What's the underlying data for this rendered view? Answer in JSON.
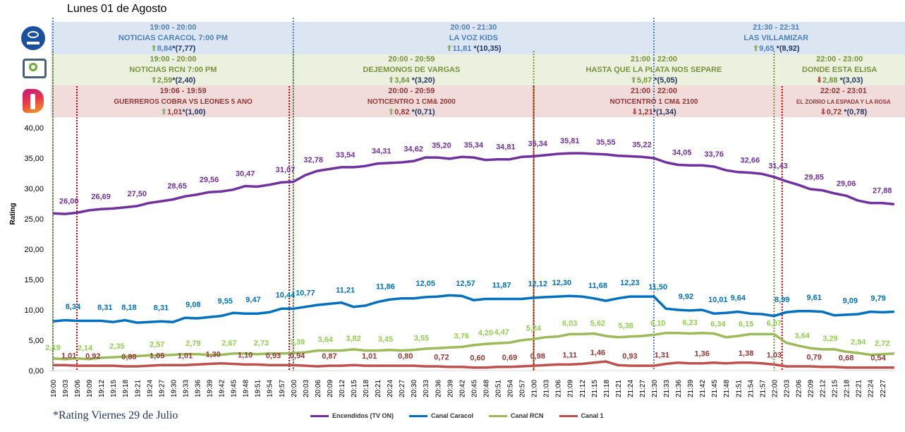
{
  "title": "Lunes 01 de Agosto",
  "footnote": "*Rating Viernes 29 de Julio",
  "channels": {
    "caracol": {
      "logo": "CARACOL",
      "programs": [
        {
          "time": "19:00 - 20:00",
          "title": "NOTICIAS CARACOL 7:00 PM",
          "arrow": "up",
          "rating": "8,84",
          "prev": "*(7,77)"
        },
        {
          "time": "20:00 - 21:30",
          "title": "LA VOZ KIDS",
          "arrow": "up",
          "rating": "11,81",
          "prev": " *(10,35)"
        },
        {
          "time": "21:30 - 22:31",
          "title": "LAS VILLAMIZAR",
          "arrow": "up",
          "rating": "9,65",
          "prev": " *(8,92)"
        }
      ]
    },
    "rcn": {
      "programs": [
        {
          "time": "19:00 - 20:00",
          "title": "NOTICIAS RCN 7:00 PM",
          "arrow": "up",
          "rating": "2,59",
          "prev": "*(2,40)"
        },
        {
          "time": "20:00 - 20:59",
          "title": "DEJEMONOS DE VARGAS",
          "arrow": "up",
          "rating": "3,84",
          "prev": " *(3,20)"
        },
        {
          "time": "21:00 - 22:00",
          "title": "HASTA QUE LA PLATA NOS SEPARE",
          "arrow": "up",
          "rating": "5,87",
          "prev": " *(5,05)"
        },
        {
          "time": "22:00 - 23:00",
          "title": "DONDE ESTA ELISA",
          "arrow": "down",
          "rating": "2,88",
          "prev": " *(3,03)"
        }
      ]
    },
    "canal1": {
      "programs": [
        {
          "time": "19:06 - 19:59",
          "title": "GUERREROS COBRA VS LEONES 5 ANO",
          "arrow": "up",
          "rating": "1,01",
          "prev": "*(1,00)"
        },
        {
          "time": "20:00 - 20:59",
          "title": "NOTICENTRO 1 CM& 2000",
          "arrow": "up",
          "rating": "0,82",
          "prev": " *(0,71)"
        },
        {
          "time": "21:00 - 22:00",
          "title": "NOTICENTRO 1 CM& 2100",
          "arrow": "down",
          "rating": "1,21",
          "prev": "*(1,34)"
        },
        {
          "time": "22:02 - 23:01",
          "title": "EL ZORRO LA ESPADA Y LA ROSA",
          "arrow": "down",
          "rating": "0,72",
          "prev": " *(0,78)"
        }
      ]
    }
  },
  "icons": {
    "up": "arrow-up",
    "down": "arrow-down"
  },
  "chart_data": {
    "type": "line",
    "title": "",
    "xlabel": "",
    "ylabel": "Rating",
    "ylim": [
      0,
      40
    ],
    "yticks": [
      "0,00",
      "5,00",
      "10,00",
      "15,00",
      "20,00",
      "25,00",
      "30,00",
      "35,00",
      "40,00"
    ],
    "x_start": "19:00",
    "x_step_minutes": 3,
    "xticks": [
      "19:00",
      "19:03",
      "19:06",
      "19:09",
      "19:12",
      "19:15",
      "19:18",
      "19:21",
      "19:24",
      "19:27",
      "19:30",
      "19:33",
      "19:36",
      "19:39",
      "19:42",
      "19:45",
      "19:48",
      "19:51",
      "19:54",
      "19:57",
      "20:00",
      "20:03",
      "20:06",
      "20:09",
      "20:12",
      "20:15",
      "20:18",
      "20:21",
      "20:24",
      "20:27",
      "20:30",
      "20:33",
      "20:36",
      "20:39",
      "20:42",
      "20:45",
      "20:48",
      "20:51",
      "20:54",
      "20:57",
      "21:00",
      "21:03",
      "21:06",
      "21:09",
      "21:12",
      "21:15",
      "21:18",
      "21:21",
      "21:24",
      "21:27",
      "21:30",
      "21:33",
      "21:36",
      "21:39",
      "21:42",
      "21:45",
      "21:48",
      "21:51",
      "21:54",
      "21:57",
      "22:00",
      "22:03",
      "22:06",
      "22:09",
      "22:12",
      "22:15",
      "22:18",
      "22:21",
      "22:24",
      "22:27"
    ],
    "grid": false,
    "legend": "bottom",
    "program_boundaries": {
      "caracol": [
        "19:00",
        "20:00",
        "21:30"
      ],
      "rcn": [
        "19:00",
        "20:00",
        "21:00",
        "22:00"
      ],
      "canal1": [
        "19:06",
        "19:59",
        "21:00",
        "22:02"
      ]
    },
    "series": [
      {
        "name": "Encendidos (TV ON)",
        "color": "#7030a0",
        "label_color": "#7030a0",
        "values": [
          25.9,
          25.8,
          26.0,
          26.4,
          26.6,
          26.7,
          26.9,
          27.1,
          27.6,
          27.9,
          28.2,
          28.7,
          29.0,
          29.4,
          29.5,
          29.8,
          30.4,
          30.3,
          30.6,
          31.0,
          31.1,
          32.2,
          32.9,
          33.2,
          33.5,
          33.5,
          33.7,
          34.1,
          34.2,
          34.3,
          34.5,
          35.1,
          35.1,
          34.9,
          35.2,
          35.1,
          34.7,
          34.8,
          34.8,
          35.2,
          35.3,
          35.5,
          35.7,
          35.8,
          35.8,
          35.7,
          35.6,
          35.4,
          35.3,
          35.2,
          35.0,
          34.3,
          33.9,
          33.8,
          33.8,
          33.6,
          33.0,
          32.7,
          32.6,
          32.4,
          31.9,
          31.2,
          30.6,
          29.9,
          29.7,
          29.2,
          28.8,
          28.0,
          27.6,
          27.6,
          27.4
        ],
        "labels": [
          [
            "19:04",
            "26,00"
          ],
          [
            "19:12",
            "26,69"
          ],
          [
            "19:21",
            "27,50"
          ],
          [
            "19:31",
            "28,65"
          ],
          [
            "19:39",
            "29,56"
          ],
          [
            "19:48",
            "30,47"
          ],
          [
            "19:58",
            "31,07"
          ],
          [
            "20:05",
            "32,78"
          ],
          [
            "20:13",
            "33,54"
          ],
          [
            "20:22",
            "34,31"
          ],
          [
            "20:30",
            "34,62"
          ],
          [
            "20:37",
            "35,20"
          ],
          [
            "20:45",
            "35,34"
          ],
          [
            "20:53",
            "34,81"
          ],
          [
            "21:01",
            "35,34"
          ],
          [
            "21:09",
            "35,81"
          ],
          [
            "21:18",
            "35,55"
          ],
          [
            "21:27",
            "35,22"
          ],
          [
            "21:37",
            "34,05"
          ],
          [
            "21:45",
            "33,76"
          ],
          [
            "21:54",
            "32,66"
          ],
          [
            "22:01",
            "31,43"
          ],
          [
            "22:10",
            "29,85"
          ],
          [
            "22:18",
            "29,06"
          ],
          [
            "22:27",
            "27,88"
          ]
        ]
      },
      {
        "name": "Canal Caracol",
        "color": "#0070c0",
        "label_color": "#0070c0",
        "values": [
          8.1,
          8.3,
          8.2,
          8.2,
          8.2,
          8.0,
          8.3,
          7.9,
          8.0,
          8.1,
          8.0,
          8.7,
          8.6,
          8.8,
          9.0,
          9.5,
          9.4,
          9.4,
          9.6,
          10.2,
          10.2,
          10.5,
          10.8,
          11.0,
          11.2,
          10.5,
          10.7,
          11.3,
          11.7,
          11.9,
          11.9,
          12.1,
          12.2,
          12.4,
          12.3,
          11.6,
          11.8,
          11.8,
          11.8,
          11.8,
          12.0,
          12.1,
          12.2,
          12.3,
          12.2,
          11.9,
          11.5,
          11.9,
          12.2,
          12.2,
          12.2,
          10.2,
          10.0,
          9.9,
          10.0,
          9.4,
          9.5,
          9.7,
          9.4,
          9.3,
          9.0,
          9.6,
          9.8,
          9.8,
          9.7,
          9.1,
          9.2,
          9.3,
          9.7,
          9.6,
          9.7
        ],
        "labels": [
          [
            "19:05",
            "8,34"
          ],
          [
            "19:13",
            "8,31"
          ],
          [
            "19:19",
            "8,18"
          ],
          [
            "19:27",
            "8,31"
          ],
          [
            "19:35",
            "9,08"
          ],
          [
            "19:43",
            "9,55"
          ],
          [
            "19:50",
            "9,47"
          ],
          [
            "19:58",
            "10,44"
          ],
          [
            "20:03",
            "10,77"
          ],
          [
            "20:13",
            "11,21"
          ],
          [
            "20:23",
            "11,86"
          ],
          [
            "20:33",
            "12,05"
          ],
          [
            "20:43",
            "12,57"
          ],
          [
            "20:52",
            "11,87"
          ],
          [
            "21:01",
            "12,12"
          ],
          [
            "21:07",
            "12,30"
          ],
          [
            "21:16",
            "11,68"
          ],
          [
            "21:24",
            "12,23"
          ],
          [
            "21:31",
            "11,50"
          ],
          [
            "21:38",
            "9,92"
          ],
          [
            "21:46",
            "10,01"
          ],
          [
            "21:51",
            "9,64"
          ],
          [
            "22:02",
            "8,99"
          ],
          [
            "22:10",
            "9,61"
          ],
          [
            "22:19",
            "9,09"
          ],
          [
            "22:26",
            "9,79"
          ]
        ]
      },
      {
        "name": "Canal RCN",
        "color": "#9bbb59",
        "label_color": "#92d050",
        "values": [
          2.0,
          1.9,
          2.0,
          1.9,
          2.1,
          2.2,
          2.3,
          2.4,
          2.5,
          2.5,
          2.6,
          2.7,
          2.7,
          2.6,
          2.6,
          2.8,
          2.8,
          2.7,
          2.8,
          2.8,
          2.9,
          3.0,
          3.3,
          3.3,
          3.3,
          3.5,
          3.3,
          3.3,
          3.4,
          3.3,
          3.4,
          3.6,
          3.7,
          3.8,
          3.9,
          4.2,
          4.4,
          4.5,
          4.6,
          5.0,
          5.2,
          5.5,
          5.6,
          6.0,
          6.0,
          6.1,
          5.7,
          5.5,
          5.6,
          5.7,
          5.9,
          6.2,
          6.2,
          6.1,
          6.2,
          6.1,
          5.5,
          5.7,
          6.0,
          6.0,
          6.0,
          4.6,
          4.1,
          3.7,
          3.5,
          3.5,
          3.1,
          2.9,
          2.6,
          2.7,
          2.8
        ],
        "labels": [
          [
            "19:00",
            "2,19"
          ],
          [
            "19:08",
            "2,14"
          ],
          [
            "19:16",
            "2,35"
          ],
          [
            "19:26",
            "2,57"
          ],
          [
            "19:35",
            "2,79"
          ],
          [
            "19:44",
            "2,67"
          ],
          [
            "19:52",
            "2,73"
          ],
          [
            "20:01",
            "3,39"
          ],
          [
            "20:08",
            "3,64"
          ],
          [
            "20:15",
            "3,82"
          ],
          [
            "20:23",
            "3,45"
          ],
          [
            "20:32",
            "3,55"
          ],
          [
            "20:42",
            "3,76"
          ],
          [
            "20:48",
            "4,20"
          ],
          [
            "20:52",
            "4,47"
          ],
          [
            "21:00",
            "5,24"
          ],
          [
            "21:09",
            "6,03"
          ],
          [
            "21:16",
            "5,62"
          ],
          [
            "21:23",
            "5,38"
          ],
          [
            "21:31",
            "6,10"
          ],
          [
            "21:39",
            "6,23"
          ],
          [
            "21:46",
            "6,34"
          ],
          [
            "21:53",
            "6,15"
          ],
          [
            "22:00",
            "6,07"
          ],
          [
            "22:07",
            "3,64"
          ],
          [
            "22:14",
            "3,29"
          ],
          [
            "22:21",
            "2,94"
          ],
          [
            "22:27",
            "2,72"
          ]
        ]
      },
      {
        "name": "Canal 1",
        "color": "#c0504d",
        "label_color": "#953735",
        "values": [
          0.9,
          0.9,
          0.8,
          0.8,
          0.8,
          0.8,
          0.7,
          0.7,
          0.8,
          0.9,
          0.9,
          0.9,
          1.0,
          1.1,
          1.2,
          1.1,
          1.0,
          1.0,
          0.9,
          0.9,
          0.9,
          0.8,
          0.7,
          0.8,
          0.8,
          0.9,
          0.8,
          0.8,
          0.8,
          0.8,
          0.8,
          0.7,
          0.7,
          0.6,
          0.6,
          0.5,
          0.5,
          0.6,
          0.6,
          0.7,
          0.8,
          0.9,
          1.0,
          1.0,
          1.1,
          1.3,
          1.5,
          0.9,
          0.8,
          0.8,
          0.8,
          1.1,
          1.3,
          1.2,
          1.2,
          1.3,
          1.2,
          1.3,
          1.3,
          1.2,
          1.0,
          0.7,
          0.7,
          0.7,
          0.6,
          0.6,
          0.5,
          0.5,
          0.5,
          0.5,
          0.5
        ],
        "labels": [
          [
            "19:04",
            "1,01"
          ],
          [
            "19:10",
            "0,92"
          ],
          [
            "19:19",
            "0,80"
          ],
          [
            "19:26",
            "1,05"
          ],
          [
            "19:33",
            "1,01"
          ],
          [
            "19:40",
            "1,30"
          ],
          [
            "19:48",
            "1,10"
          ],
          [
            "19:55",
            "0,93"
          ],
          [
            "20:01",
            "0,94"
          ],
          [
            "20:09",
            "0,87"
          ],
          [
            "20:19",
            "1,01"
          ],
          [
            "20:28",
            "0,80"
          ],
          [
            "20:37",
            "0,72"
          ],
          [
            "20:46",
            "0,60"
          ],
          [
            "20:54",
            "0,69"
          ],
          [
            "21:01",
            "0,98"
          ],
          [
            "21:09",
            "1,11"
          ],
          [
            "21:16",
            "1,46"
          ],
          [
            "21:24",
            "0,93"
          ],
          [
            "21:32",
            "1,31"
          ],
          [
            "21:42",
            "1,36"
          ],
          [
            "21:53",
            "1,38"
          ],
          [
            "22:00",
            "1,03"
          ],
          [
            "22:10",
            "0,79"
          ],
          [
            "22:18",
            "0,68"
          ],
          [
            "22:26",
            "0,54"
          ]
        ]
      }
    ]
  }
}
